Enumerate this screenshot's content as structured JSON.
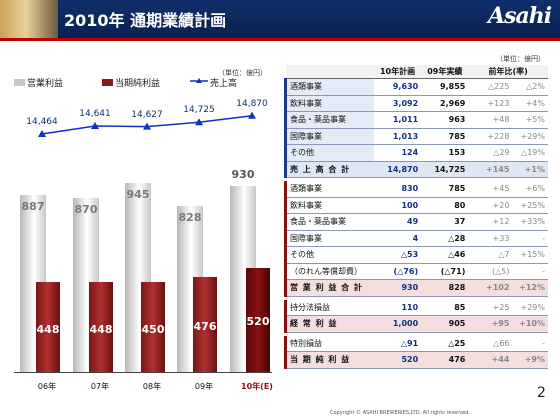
{
  "header": {
    "title": "2010年 通期業績計画",
    "logo": "Asahi"
  },
  "unit_top": "（単位：億円）",
  "chart": {
    "unit": "（単位：億円）",
    "legend": [
      "営業利益",
      "当期純利益",
      "売上高"
    ],
    "colors": {
      "op": "#c8c8c8",
      "net": "#8a1a1a",
      "sales": "#1030c0"
    },
    "chart_data": {
      "type": "bar",
      "categories": [
        "06年",
        "07年",
        "08年",
        "09年",
        "10年(E)"
      ],
      "series": [
        {
          "name": "営業利益",
          "values": [
            887,
            870,
            945,
            828,
            930
          ]
        },
        {
          "name": "当期純利益",
          "values": [
            448,
            448,
            450,
            476,
            520
          ]
        },
        {
          "name": "売上高",
          "type": "line",
          "values": [
            14464,
            14641,
            14627,
            14725,
            14870
          ]
        }
      ]
    },
    "labels": {
      "op": [
        "887",
        "870",
        "945",
        "828",
        "930"
      ],
      "net": [
        "448",
        "448",
        "450",
        "476",
        "520"
      ],
      "sales": [
        "14,464",
        "14,641",
        "14,627",
        "14,725",
        "14,870"
      ]
    }
  },
  "table": {
    "headers": [
      "",
      "10年計画",
      "09年実績",
      "前年比(率)"
    ],
    "rows": [
      {
        "label": "酒類事業",
        "plan": "9,630",
        "act": "9,855",
        "d1": "△225",
        "d2": "△2%",
        "kind": "blue"
      },
      {
        "label": "飲料事業",
        "plan": "3,092",
        "act": "2,969",
        "d1": "+123",
        "d2": "+4%",
        "kind": "blue"
      },
      {
        "label": "食品・薬品事業",
        "plan": "1,011",
        "act": "963",
        "d1": "+48",
        "d2": "+5%",
        "kind": "blue"
      },
      {
        "label": "国際事業",
        "plan": "1,013",
        "act": "785",
        "d1": "+228",
        "d2": "+29%",
        "kind": "blue"
      },
      {
        "label": "その他",
        "plan": "124",
        "act": "153",
        "d1": "△29",
        "d2": "△19%",
        "kind": "blue"
      },
      {
        "label": "売 上 高 合 計",
        "plan": "14,870",
        "act": "14,725",
        "d1": "+145",
        "d2": "+1%",
        "kind": "total"
      },
      {
        "label": "酒類事業",
        "plan": "830",
        "act": "785",
        "d1": "+45",
        "d2": "+6%",
        "kind": "red"
      },
      {
        "label": "飲料事業",
        "plan": "100",
        "act": "80",
        "d1": "+20",
        "d2": "+25%",
        "kind": "red"
      },
      {
        "label": "食品・薬品事業",
        "plan": "49",
        "act": "37",
        "d1": "+12",
        "d2": "+33%",
        "kind": "red"
      },
      {
        "label": "国際事業",
        "plan": "4",
        "act": "△28",
        "d1": "+33",
        "d2": "-",
        "kind": "red"
      },
      {
        "label": "その他",
        "plan": "△53",
        "act": "△46",
        "d1": "△7",
        "d2": "+15%",
        "kind": "red"
      },
      {
        "label": "（のれん等償却費）",
        "plan": "(△76)",
        "act": "(△71)",
        "d1": "(△5)",
        "d2": "-",
        "kind": "red"
      },
      {
        "label": "営 業 利 益 合 計",
        "plan": "930",
        "act": "828",
        "d1": "+102",
        "d2": "+12%",
        "kind": "rtotal"
      },
      {
        "label": "持分法損益",
        "plan": "110",
        "act": "85",
        "d1": "+25",
        "d2": "+29%",
        "kind": "red"
      },
      {
        "label": "経 常 利 益",
        "plan": "1,000",
        "act": "905",
        "d1": "+95",
        "d2": "+10%",
        "kind": "rtotal"
      },
      {
        "label": "特別損益",
        "plan": "△91",
        "act": "△25",
        "d1": "△66",
        "d2": "-",
        "kind": "red"
      },
      {
        "label": "当 期 純 利 益",
        "plan": "520",
        "act": "476",
        "d1": "+44",
        "d2": "+9%",
        "kind": "rtotal"
      }
    ]
  },
  "page_number": "2",
  "copyright": "Copyright © ASAHI BREWERIES,LTD. All rights reserved."
}
